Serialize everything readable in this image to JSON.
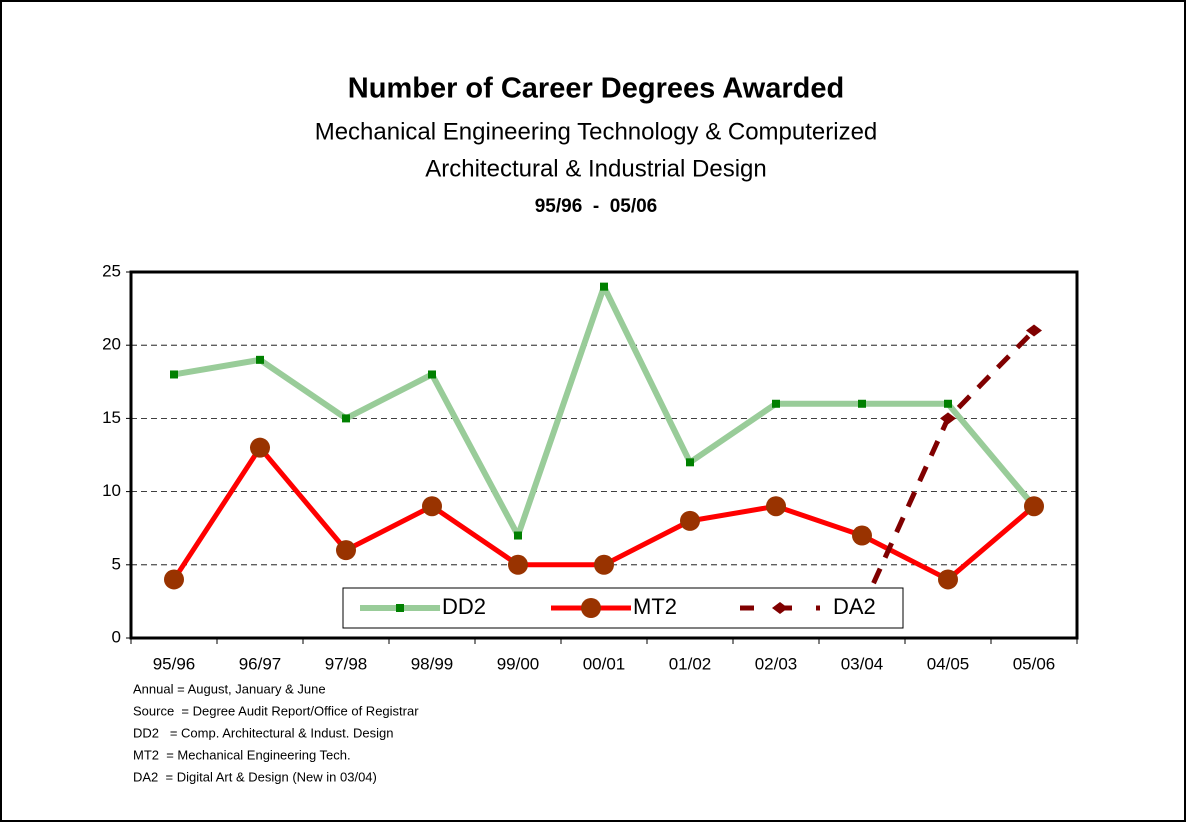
{
  "chart_data": {
    "type": "line",
    "title": "Number of Career Degrees Awarded",
    "subtitle_lines": [
      "Mechanical Engineering Technology & Computerized",
      "Architectural & Industrial Design"
    ],
    "period": "95/96  -  05/06",
    "categories": [
      "95/96",
      "96/97",
      "97/98",
      "98/99",
      "99/00",
      "00/01",
      "01/02",
      "02/03",
      "03/04",
      "04/05",
      "05/06"
    ],
    "series": [
      {
        "name": "DD2",
        "color": "#99cc99",
        "marker_color": "#008000",
        "values": [
          18,
          19,
          15,
          18,
          7,
          24,
          12,
          16,
          16,
          16,
          9
        ]
      },
      {
        "name": "MT2",
        "color": "#ff0000",
        "marker_color": "#993300",
        "values": [
          4,
          13,
          6,
          9,
          5,
          5,
          8,
          9,
          7,
          4,
          9
        ]
      },
      {
        "name": "DA2",
        "color": "#800000",
        "marker_color": "#800000",
        "dashed": true,
        "values": [
          null,
          null,
          null,
          null,
          null,
          null,
          null,
          null,
          2,
          15,
          21
        ]
      }
    ],
    "ylim": [
      0,
      25
    ],
    "yticks": [
      0,
      5,
      10,
      15,
      20,
      25
    ],
    "grid": true,
    "notes": [
      "Annual = August, January & June",
      "Source  = Degree Audit Report/Office of Registrar",
      "DD2   = Comp. Architectural & Indust. Design",
      "MT2  = Mechanical Engineering Tech.",
      "DA2  = Digital Art & Design (New in 03/04)"
    ]
  }
}
